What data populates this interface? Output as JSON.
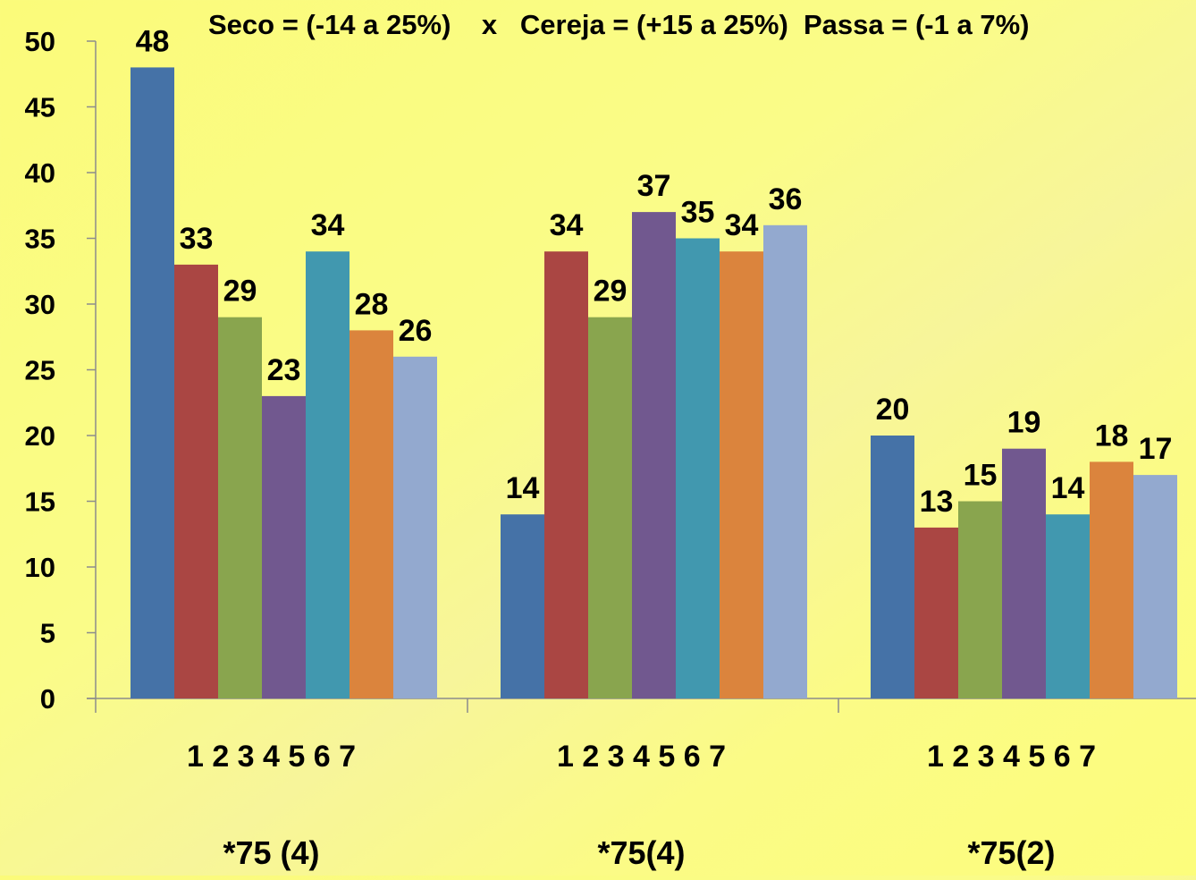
{
  "chart_data": {
    "type": "bar",
    "title": "Seco = (-14 a 25%)    x   Cereja = (+15 a 25%)  Passa = (-1 a 7%)",
    "ylim": [
      0,
      50
    ],
    "yticks": [
      0,
      5,
      10,
      15,
      20,
      25,
      30,
      35,
      40,
      45,
      50
    ],
    "grid": false,
    "groups": [
      {
        "label": "*75 (4)",
        "sub_label": "1 2 3 4 5 6 7"
      },
      {
        "label": "*75(4)",
        "sub_label": "1 2 3 4 5 6 7"
      },
      {
        "label": "*75(2)",
        "sub_label": "1 2 3 4 5 6 7"
      }
    ],
    "series": [
      {
        "color": "#4572a7",
        "values": [
          48,
          14,
          20
        ]
      },
      {
        "color": "#aa4643",
        "values": [
          33,
          34,
          13
        ]
      },
      {
        "color": "#89a54e",
        "values": [
          29,
          29,
          15
        ]
      },
      {
        "color": "#71588f",
        "values": [
          23,
          37,
          19
        ]
      },
      {
        "color": "#4198af",
        "values": [
          34,
          35,
          14
        ]
      },
      {
        "color": "#db843d",
        "values": [
          28,
          34,
          18
        ]
      },
      {
        "color": "#93a9cf",
        "values": [
          26,
          36,
          17
        ]
      }
    ]
  }
}
